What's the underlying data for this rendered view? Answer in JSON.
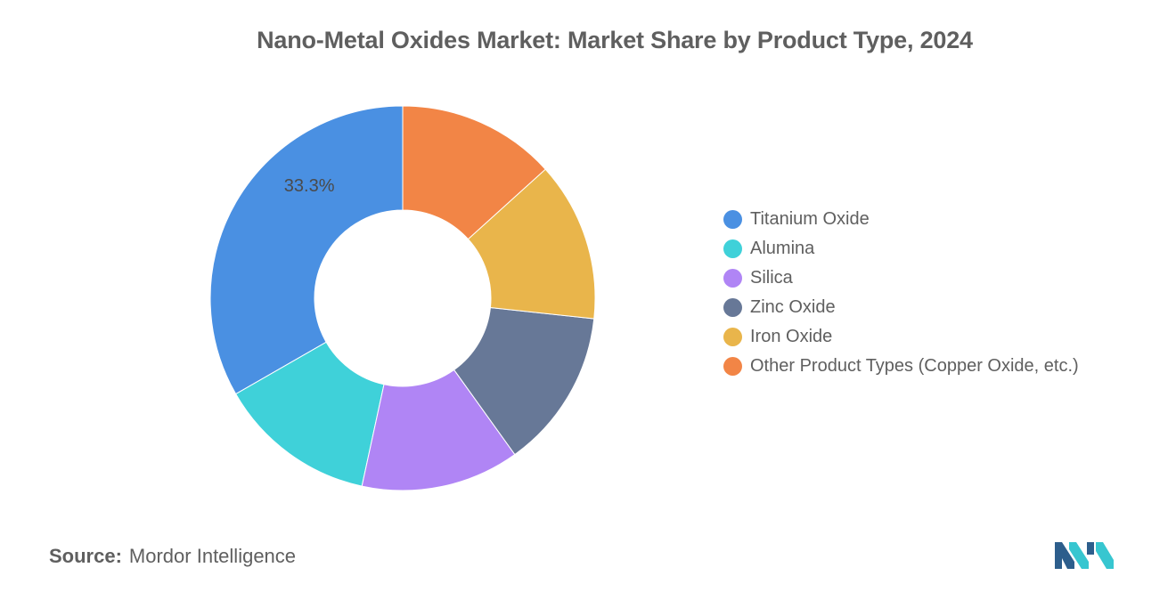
{
  "title": "Nano-Metal Oxides Market: Market Share by Product Type, 2024",
  "source": {
    "label": "Source:",
    "value": "Mordor Intelligence"
  },
  "logo": {
    "icon": "mordor-intelligence-logo",
    "colors": [
      "#2d5e8c",
      "#37c6d0"
    ]
  },
  "chart_data": {
    "type": "pie",
    "donut": true,
    "legend_position": "right",
    "title": "Nano-Metal Oxides Market: Market Share by Product Type, 2024",
    "slices": [
      {
        "name": "Titanium Oxide",
        "value": 33.3,
        "color": "#4a90e2",
        "label": "33.3%"
      },
      {
        "name": "Alumina",
        "value": 13.3,
        "color": "#3fd1d9",
        "label": ""
      },
      {
        "name": "Silica",
        "value": 13.3,
        "color": "#b085f5",
        "label": ""
      },
      {
        "name": "Zinc Oxide",
        "value": 13.4,
        "color": "#677897",
        "label": ""
      },
      {
        "name": "Iron Oxide",
        "value": 13.4,
        "color": "#e9b54b",
        "label": ""
      },
      {
        "name": "Other Product Types (Copper Oxide, etc.)",
        "value": 13.3,
        "color": "#f28546",
        "label": ""
      }
    ]
  }
}
